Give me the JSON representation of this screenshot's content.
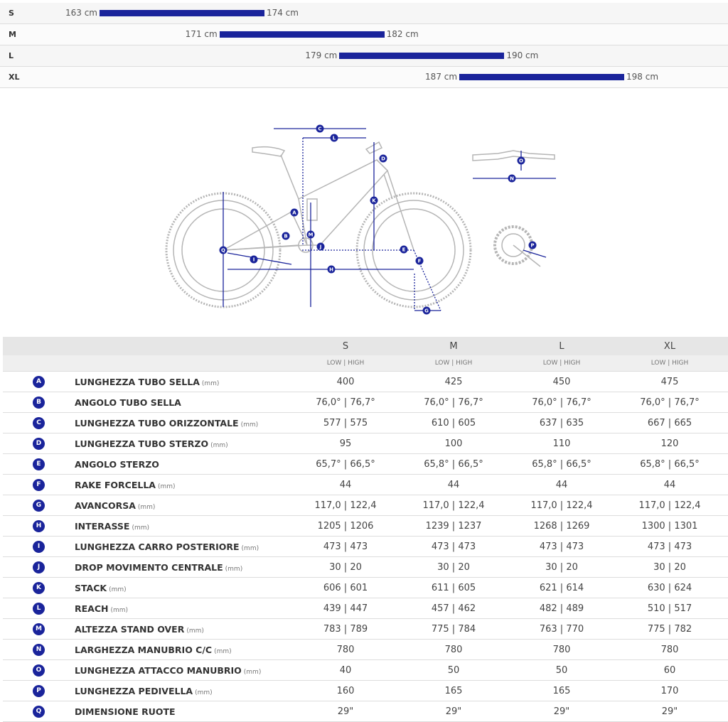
{
  "size_chart": {
    "rows": [
      {
        "size": "S",
        "from": {
          "value": 163,
          "label": "163 cm"
        },
        "to": {
          "value": 174,
          "label": "174 cm"
        }
      },
      {
        "size": "M",
        "from": {
          "value": 171,
          "label": "171 cm"
        },
        "to": {
          "value": 182,
          "label": "182 cm"
        }
      },
      {
        "size": "L",
        "from": {
          "value": 179,
          "label": "179 cm"
        },
        "to": {
          "value": 190,
          "label": "190 cm"
        }
      },
      {
        "size": "XL",
        "from": {
          "value": 187,
          "label": "187 cm"
        },
        "to": {
          "value": 198,
          "label": "198 cm"
        }
      }
    ]
  },
  "table": {
    "sizes": [
      "S",
      "M",
      "L",
      "XL"
    ],
    "subheader": "LOW | HIGH",
    "rows": [
      {
        "letter": "A",
        "name": "LUNGHEZZA TUBO SELLA",
        "unit": "(mm)",
        "values": [
          "400",
          "425",
          "450",
          "475"
        ]
      },
      {
        "letter": "B",
        "name": "ANGOLO TUBO SELLA",
        "values": [
          "76,0° | 76,7°",
          "76,0° | 76,7°",
          "76,0° | 76,7°",
          "76,0° | 76,7°"
        ]
      },
      {
        "letter": "C",
        "name": "LUNGHEZZA TUBO ORIZZONTALE",
        "unit": "(mm)",
        "values": [
          "577 | 575",
          "610 | 605",
          "637 | 635",
          "667 | 665"
        ]
      },
      {
        "letter": "D",
        "name": "LUNGHEZZA TUBO STERZO",
        "unit": "(mm)",
        "values": [
          "95",
          "100",
          "110",
          "120"
        ]
      },
      {
        "letter": "E",
        "name": "ANGOLO STERZO",
        "values": [
          "65,7° | 66,5°",
          "65,8° | 66,5°",
          "65,8° | 66,5°",
          "65,8° | 66,5°"
        ]
      },
      {
        "letter": "F",
        "name": "RAKE FORCELLA",
        "unit": "(mm)",
        "values": [
          "44",
          "44",
          "44",
          "44"
        ]
      },
      {
        "letter": "G",
        "name": "AVANCORSA",
        "unit": "(mm)",
        "values": [
          "117,0 | 122,4",
          "117,0 | 122,4",
          "117,0 | 122,4",
          "117,0 | 122,4"
        ]
      },
      {
        "letter": "H",
        "name": "INTERASSE",
        "unit": "(mm)",
        "values": [
          "1205 | 1206",
          "1239 | 1237",
          "1268 | 1269",
          "1300 | 1301"
        ]
      },
      {
        "letter": "I",
        "name": "LUNGHEZZA CARRO POSTERIORE",
        "unit": "(mm)",
        "values": [
          "473 | 473",
          "473 | 473",
          "473 | 473",
          "473 | 473"
        ]
      },
      {
        "letter": "J",
        "name": "DROP MOVIMENTO CENTRALE",
        "unit": "(mm)",
        "values": [
          "30 | 20",
          "30 | 20",
          "30 | 20",
          "30 | 20"
        ]
      },
      {
        "letter": "K",
        "name": "STACK",
        "unit": "(mm)",
        "values": [
          "606 | 601",
          "611 | 605",
          "621 | 614",
          "630 | 624"
        ]
      },
      {
        "letter": "L",
        "name": "REACH",
        "unit": "(mm)",
        "values": [
          "439 | 447",
          "457 | 462",
          "482 | 489",
          "510 | 517"
        ]
      },
      {
        "letter": "M",
        "name": "ALTEZZA STAND OVER",
        "unit": "(mm)",
        "values": [
          "783 | 789",
          "775 | 784",
          "763 | 770",
          "775 | 782"
        ]
      },
      {
        "letter": "N",
        "name": "LARGHEZZA MANUBRIO C/C",
        "unit": "(mm)",
        "values": [
          "780",
          "780",
          "780",
          "780"
        ]
      },
      {
        "letter": "O",
        "name": "LUNGHEZZA ATTACCO MANUBRIO",
        "unit": "(mm)",
        "values": [
          "40",
          "50",
          "50",
          "60"
        ]
      },
      {
        "letter": "P",
        "name": "LUNGHEZZA PEDIVELLA",
        "unit": "(mm)",
        "values": [
          "160",
          "165",
          "165",
          "170"
        ]
      },
      {
        "letter": "Q",
        "name": "DIMENSIONE RUOTE",
        "values": [
          "29\"",
          "29\"",
          "29\"",
          "29\""
        ]
      }
    ]
  }
}
